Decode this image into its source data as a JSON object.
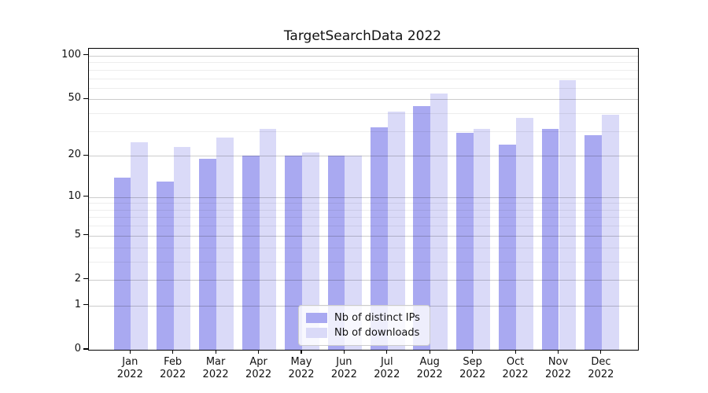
{
  "title": "TargetSearchData 2022",
  "colors": {
    "distinct_ips": "#a9a9f1",
    "downloads": "#dadaf8",
    "grid_major": "rgba(0,0,0,0.20)",
    "grid_minor": "rgba(0,0,0,0.07)",
    "axis": "#000000"
  },
  "chart_data": {
    "type": "bar",
    "title": "TargetSearchData 2022",
    "months": [
      "Jan",
      "Feb",
      "Mar",
      "Apr",
      "May",
      "Jun",
      "Jul",
      "Aug",
      "Sep",
      "Oct",
      "Nov",
      "Dec"
    ],
    "year_label": "2022",
    "series": [
      {
        "name": "Nb of distinct IPs",
        "color": "#a9a9f1",
        "values": [
          14,
          13,
          19,
          20,
          20,
          20,
          32,
          45,
          29,
          24,
          31,
          28
        ]
      },
      {
        "name": "Nb of downloads",
        "color": "#dadaf8",
        "values": [
          25,
          23,
          27,
          31,
          21,
          20,
          41,
          55,
          31,
          37,
          68,
          39
        ]
      }
    ],
    "y_scale": "log1p",
    "y_major_ticks": [
      0,
      1,
      2,
      5,
      10,
      20,
      50,
      100
    ],
    "y_minor_gridlines": [
      3,
      4,
      6,
      7,
      8,
      9,
      30,
      40,
      60,
      70,
      80,
      90
    ],
    "ylim": [
      0,
      112
    ],
    "xlabel": "",
    "ylabel": "",
    "grid": true,
    "grid_over_bars": true,
    "legend_position": "lower center"
  }
}
